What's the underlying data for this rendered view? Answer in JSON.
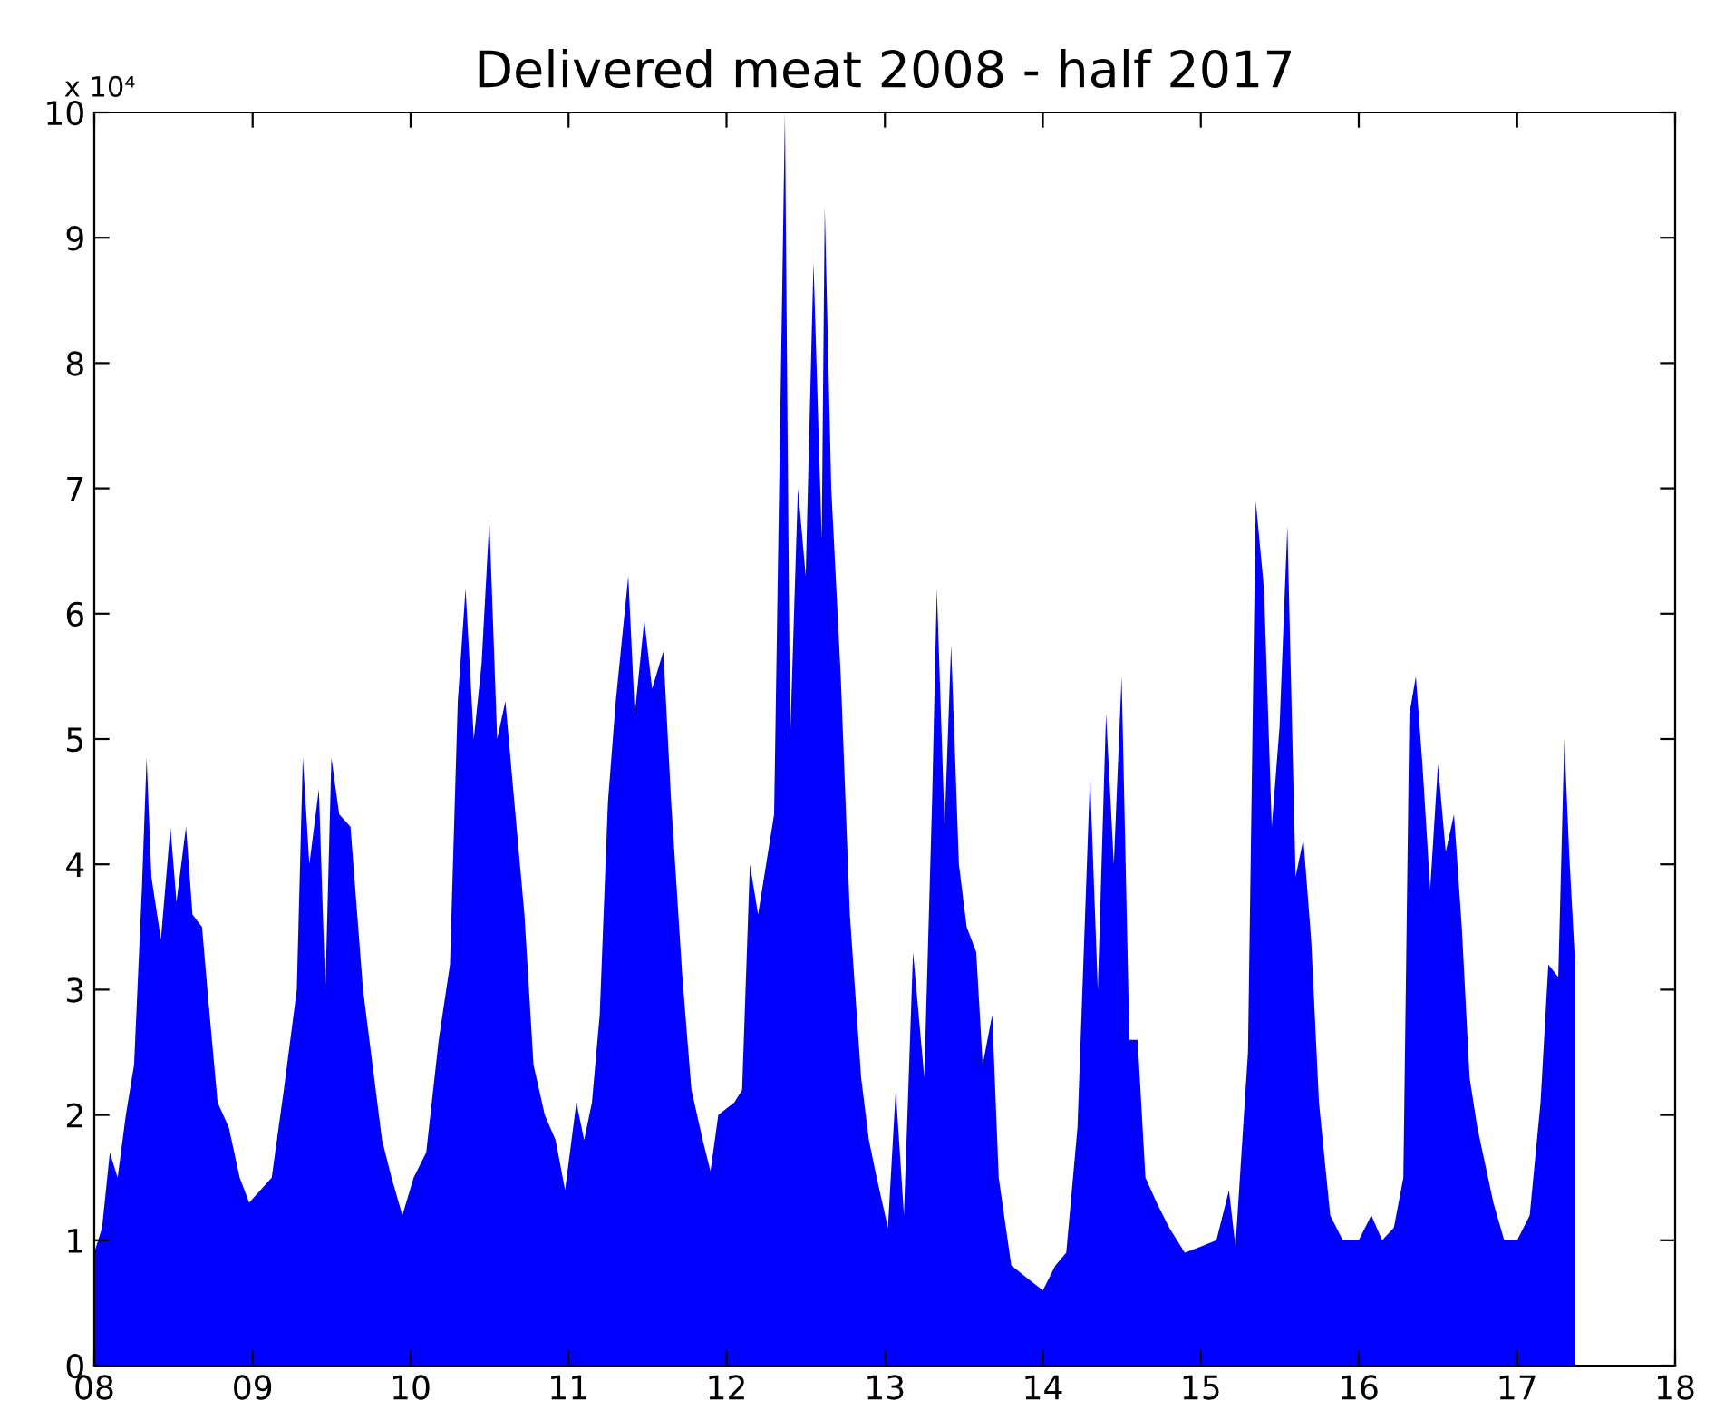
{
  "chart_data": {
    "type": "area",
    "title": "Delivered meat 2008 - half 2017",
    "annotations": [
      "x 10⁴"
    ],
    "xlim": [
      "2008-01-01",
      "2018-01-01"
    ],
    "xticks": [
      {
        "value": "2008-01-01",
        "label": "08"
      },
      {
        "value": "2009-01-01",
        "label": "09"
      },
      {
        "value": "2010-01-01",
        "label": "10"
      },
      {
        "value": "2011-01-01",
        "label": "11"
      },
      {
        "value": "2012-01-01",
        "label": "12"
      },
      {
        "value": "2013-01-01",
        "label": "13"
      },
      {
        "value": "2014-01-01",
        "label": "14"
      },
      {
        "value": "2015-01-01",
        "label": "15"
      },
      {
        "value": "2016-01-01",
        "label": "16"
      },
      {
        "value": "2017-01-01",
        "label": "17"
      },
      {
        "value": "2018-01-01",
        "label": "18"
      }
    ],
    "ylim": [
      0,
      10
    ],
    "yticks": [
      0,
      1,
      2,
      3,
      4,
      5,
      6,
      7,
      8,
      9,
      10
    ],
    "grid": false,
    "legend": false,
    "series": [
      {
        "color": "#0000ff",
        "x": [
          "2008-01-01",
          "2008-01-19",
          "2008-02-06",
          "2008-02-24",
          "2008-03-14",
          "2008-04-02",
          "2008-04-20",
          "2008-05-01",
          "2008-05-12",
          "2008-06-03",
          "2008-06-25",
          "2008-07-09",
          "2008-07-31",
          "2008-08-15",
          "2008-09-06",
          "2008-09-21",
          "2008-10-12",
          "2008-11-07",
          "2008-12-02",
          "2008-12-24",
          "2009-01-19",
          "2009-02-14",
          "2009-03-14",
          "2009-04-13",
          "2009-04-27",
          "2009-05-12",
          "2009-06-03",
          "2009-06-18",
          "2009-07-02",
          "2009-07-20",
          "2009-08-15",
          "2009-09-13",
          "2009-10-05",
          "2009-10-27",
          "2009-11-18",
          "2009-12-13",
          "2010-01-08",
          "2010-02-06",
          "2010-03-07",
          "2010-04-02",
          "2010-04-20",
          "2010-05-08",
          "2010-05-27",
          "2010-06-14",
          "2010-07-02",
          "2010-07-20",
          "2010-08-08",
          "2010-08-26",
          "2010-09-21",
          "2010-10-12",
          "2010-11-07",
          "2010-12-02",
          "2010-12-24",
          "2011-01-19",
          "2011-02-06",
          "2011-02-24",
          "2011-03-14",
          "2011-04-02",
          "2011-04-20",
          "2011-05-19",
          "2011-06-03",
          "2011-06-25",
          "2011-07-13",
          "2011-08-08",
          "2011-08-26",
          "2011-09-21",
          "2011-10-12",
          "2011-11-07",
          "2011-11-25",
          "2011-12-13",
          "2012-01-19",
          "2012-02-06",
          "2012-02-24",
          "2012-03-14",
          "2012-04-20",
          "2012-05-15",
          "2012-05-27",
          "2012-06-14",
          "2012-07-02",
          "2012-07-20",
          "2012-08-08",
          "2012-08-15",
          "2012-08-30",
          "2012-09-21",
          "2012-10-12",
          "2012-11-07",
          "2012-11-25",
          "2012-12-13",
          "2013-01-08",
          "2013-01-26",
          "2013-02-14",
          "2013-03-07",
          "2013-04-02",
          "2013-04-20",
          "2013-05-01",
          "2013-05-19",
          "2013-06-03",
          "2013-06-21",
          "2013-07-09",
          "2013-07-31",
          "2013-08-15",
          "2013-09-06",
          "2013-09-21",
          "2013-10-20",
          "2013-11-25",
          "2014-01-01",
          "2014-01-30",
          "2014-02-24",
          "2014-03-22",
          "2014-04-20",
          "2014-05-08",
          "2014-05-27",
          "2014-06-14",
          "2014-07-02",
          "2014-07-20",
          "2014-08-08",
          "2014-08-26",
          "2014-09-21",
          "2014-10-20",
          "2014-11-25",
          "2015-01-01",
          "2015-02-06",
          "2015-03-07",
          "2015-03-22",
          "2015-04-20",
          "2015-05-08",
          "2015-05-27",
          "2015-06-14",
          "2015-07-02",
          "2015-07-20",
          "2015-08-08",
          "2015-08-26",
          "2015-09-13",
          "2015-10-01",
          "2015-10-27",
          "2015-11-25",
          "2016-01-01",
          "2016-01-30",
          "2016-02-24",
          "2016-03-22",
          "2016-04-13",
          "2016-04-27",
          "2016-05-12",
          "2016-05-27",
          "2016-06-14",
          "2016-07-02",
          "2016-07-20",
          "2016-08-08",
          "2016-08-26",
          "2016-09-13",
          "2016-10-01",
          "2016-11-07",
          "2016-12-02",
          "2017-01-01",
          "2017-01-30",
          "2017-02-24",
          "2017-03-14",
          "2017-04-06",
          "2017-04-20",
          "2017-05-01",
          "2017-05-15"
        ],
        "values": [
          0.9,
          1.1,
          1.7,
          1.5,
          2.0,
          2.4,
          3.8,
          4.85,
          3.9,
          3.4,
          4.3,
          3.7,
          4.3,
          3.6,
          3.5,
          2.9,
          2.1,
          1.9,
          1.5,
          1.3,
          1.4,
          1.5,
          2.2,
          3.0,
          4.85,
          4.0,
          4.6,
          3.0,
          4.85,
          4.4,
          4.3,
          3.0,
          2.4,
          1.8,
          1.5,
          1.2,
          1.5,
          1.7,
          2.6,
          3.2,
          5.3,
          6.2,
          5.0,
          5.6,
          6.75,
          5.0,
          5.3,
          4.6,
          3.6,
          2.4,
          2.0,
          1.8,
          1.4,
          2.1,
          1.8,
          2.1,
          2.8,
          4.5,
          5.3,
          6.3,
          5.2,
          5.95,
          5.4,
          5.7,
          4.5,
          3.1,
          2.2,
          1.8,
          1.55,
          2.0,
          2.1,
          2.2,
          4.0,
          3.6,
          4.4,
          10.0,
          5.0,
          7.0,
          6.3,
          8.8,
          6.6,
          9.25,
          7.0,
          5.5,
          3.6,
          2.3,
          1.8,
          1.5,
          1.1,
          2.2,
          1.2,
          3.3,
          2.3,
          4.5,
          6.2,
          4.3,
          5.75,
          4.0,
          3.5,
          3.3,
          2.4,
          2.8,
          1.5,
          0.8,
          0.7,
          0.6,
          0.8,
          0.9,
          1.9,
          4.7,
          3.0,
          5.2,
          4.0,
          5.5,
          2.6,
          2.6,
          1.5,
          1.3,
          1.1,
          0.9,
          0.95,
          1.0,
          1.4,
          0.95,
          2.5,
          6.9,
          6.2,
          4.3,
          5.1,
          6.7,
          3.9,
          4.2,
          3.4,
          2.1,
          1.2,
          1.0,
          1.0,
          1.2,
          1.0,
          1.1,
          1.5,
          5.2,
          5.5,
          4.8,
          3.8,
          4.8,
          4.1,
          4.4,
          3.5,
          2.3,
          1.9,
          1.3,
          1.0,
          1.0,
          1.2,
          2.1,
          3.2,
          3.1,
          5.0,
          4.1,
          3.2
        ]
      }
    ]
  }
}
